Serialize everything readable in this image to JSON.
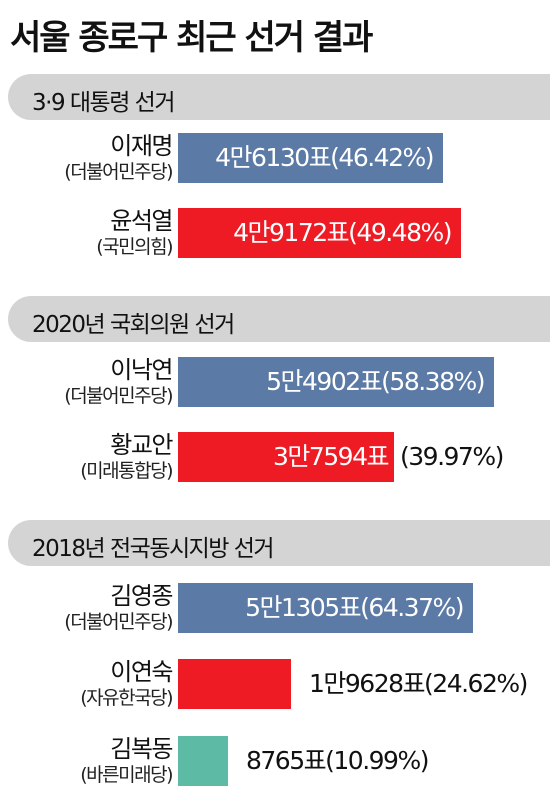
{
  "title": "서울 종로구 최근 선거 결과",
  "colors": {
    "minju": "#5b7aa6",
    "red": "#ee1b24",
    "bareun": "#5dbaa4",
    "header_bg": "#d4d4d4"
  },
  "chart_data": {
    "type": "bar",
    "orientation": "horizontal",
    "value_unit": "표",
    "elections": [
      {
        "header": "3·9 대통령 선거",
        "candidates": [
          {
            "name": "이재명",
            "party": "(더불어민주당)",
            "votes": 46130,
            "percent": 46.42,
            "label_main": "4만6130표",
            "label_pct": "(46.42%)",
            "color": "minju"
          },
          {
            "name": "윤석열",
            "party": "(국민의힘)",
            "votes": 49172,
            "percent": 49.48,
            "label_main": "4만9172표",
            "label_pct": "(49.48%)",
            "color": "red"
          }
        ]
      },
      {
        "header": "2020년 국회의원 선거",
        "candidates": [
          {
            "name": "이낙연",
            "party": "(더불어민주당)",
            "votes": 54902,
            "percent": 58.38,
            "label_main": "5만4902표",
            "label_pct": "(58.38%)",
            "color": "minju"
          },
          {
            "name": "황교안",
            "party": "(미래통합당)",
            "votes": 37594,
            "percent": 39.97,
            "label_main": "3만7594표",
            "label_pct": "(39.97%)",
            "color": "red"
          }
        ]
      },
      {
        "header": "2018년 전국동시지방 선거",
        "candidates": [
          {
            "name": "김영종",
            "party": "(더불어민주당)",
            "votes": 51305,
            "percent": 64.37,
            "label_main": "5만1305표",
            "label_pct": "(64.37%)",
            "color": "minju"
          },
          {
            "name": "이연숙",
            "party": "(자유한국당)",
            "votes": 19628,
            "percent": 24.62,
            "label_main": "1만9628표",
            "label_pct": "(24.62%)",
            "color": "red"
          },
          {
            "name": "김복동",
            "party": "(바른미래당)",
            "votes": 8765,
            "percent": 10.99,
            "label_main": "8765표",
            "label_pct": "(10.99%)",
            "color": "bareun"
          }
        ]
      }
    ]
  }
}
